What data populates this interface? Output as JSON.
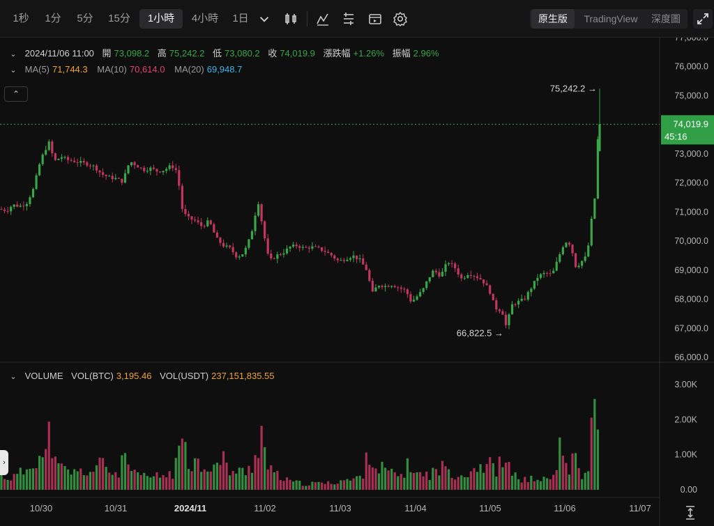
{
  "toolbar": {
    "timeframes": [
      "1秒",
      "1分",
      "5分",
      "15分",
      "1小時",
      "4小時",
      "1日"
    ],
    "active_timeframe": "1小時",
    "dropdown_icon": "chevron-down-icon",
    "icons": [
      "candlestick-type-icon",
      "indicators-icon",
      "chart-settings-lines-icon",
      "replay-icon",
      "gear-icon"
    ],
    "views": [
      "原生版",
      "TradingView",
      "深度圖"
    ],
    "active_view": "原生版",
    "expand_icon": "fullscreen-expand-icon"
  },
  "ohlc": {
    "datetime": "2024/11/06 11:00",
    "open_label": "開",
    "open": "73,098.2",
    "high_label": "高",
    "high": "75,242.2",
    "low_label": "低",
    "low": "73,080.2",
    "close_label": "收",
    "close": "74,019.9",
    "change_label": "漲跌幅",
    "change": "+1.26%",
    "amplitude_label": "振幅",
    "amplitude": "2.96%"
  },
  "ma": {
    "ma5_label": "MA(5)",
    "ma5": "71,744.3",
    "ma10_label": "MA(10)",
    "ma10": "70,614.0",
    "ma20_label": "MA(20)",
    "ma20": "69,948.7"
  },
  "volume": {
    "label": "VOLUME",
    "btc_label": "VOL(BTC)",
    "btc": "3,195.46",
    "usdt_label": "VOL(USDT)",
    "usdt": "237,151,835.55"
  },
  "colors": {
    "up": "#3aa648",
    "down": "#c4365f",
    "ma5": "#f0a23a",
    "ma10": "#e2456d",
    "ma20": "#3fb6e6",
    "price_tag": "#2f9e44"
  },
  "chart_data": {
    "type": "candlestick",
    "price_axis": {
      "ticks": [
        66000,
        67000,
        68000,
        69000,
        70000,
        71000,
        72000,
        73000,
        74000,
        75000,
        76000,
        77000
      ],
      "tick_labels": [
        "66,000.0",
        "67,000.0",
        "68,000.0",
        "69,000.0",
        "70,000.0",
        "71,000.0",
        "72,000.0",
        "73,000.0",
        "74,000.0",
        "75,000.0",
        "76,000.0",
        "77,000.0"
      ],
      "range": [
        66000,
        77200
      ]
    },
    "volume_axis": {
      "ticks": [
        0,
        1000,
        2000,
        3000
      ],
      "tick_labels": [
        "0.00",
        "1.00K",
        "2.00K",
        "3.00K"
      ],
      "range": [
        0,
        3400
      ]
    },
    "x_labels": [
      "10/30",
      "10/31",
      "2024/11",
      "11/02",
      "11/03",
      "11/04",
      "11/05",
      "11/06",
      "11/07"
    ],
    "x_label_bold": "2024/11",
    "current_price": "74,019.9",
    "countdown": "45:16",
    "high_marker": "75,242.2",
    "low_marker": "66,822.5",
    "series_points": [
      [
        0,
        71100
      ],
      [
        10,
        71050
      ],
      [
        18,
        71250
      ],
      [
        28,
        71200
      ],
      [
        38,
        71300
      ],
      [
        48,
        71800
      ],
      [
        56,
        72600
      ],
      [
        62,
        73000
      ],
      [
        70,
        73400
      ],
      [
        78,
        72750
      ],
      [
        88,
        72900
      ],
      [
        96,
        72800
      ],
      [
        106,
        72750
      ],
      [
        116,
        72700
      ],
      [
        126,
        72650
      ],
      [
        136,
        72550
      ],
      [
        146,
        72300
      ],
      [
        156,
        72200
      ],
      [
        166,
        72150
      ],
      [
        176,
        72050
      ],
      [
        186,
        72750
      ],
      [
        196,
        72600
      ],
      [
        206,
        72450
      ],
      [
        216,
        72500
      ],
      [
        226,
        72400
      ],
      [
        236,
        72450
      ],
      [
        246,
        72600
      ],
      [
        254,
        72400
      ],
      [
        262,
        71000
      ],
      [
        270,
        70800
      ],
      [
        280,
        70700
      ],
      [
        290,
        70500
      ],
      [
        300,
        70700
      ],
      [
        310,
        70100
      ],
      [
        320,
        69850
      ],
      [
        330,
        69750
      ],
      [
        340,
        69450
      ],
      [
        350,
        69600
      ],
      [
        360,
        70200
      ],
      [
        370,
        71400
      ],
      [
        378,
        70300
      ],
      [
        386,
        69300
      ],
      [
        396,
        69500
      ],
      [
        406,
        69600
      ],
      [
        416,
        69800
      ],
      [
        426,
        69850
      ],
      [
        436,
        69750
      ],
      [
        446,
        69800
      ],
      [
        456,
        69750
      ],
      [
        466,
        69650
      ],
      [
        476,
        69500
      ],
      [
        486,
        69300
      ],
      [
        496,
        69400
      ],
      [
        506,
        69500
      ],
      [
        516,
        69350
      ],
      [
        526,
        69000
      ],
      [
        534,
        68200
      ],
      [
        542,
        68500
      ],
      [
        552,
        68450
      ],
      [
        562,
        68500
      ],
      [
        572,
        68400
      ],
      [
        582,
        68300
      ],
      [
        590,
        67900
      ],
      [
        598,
        68100
      ],
      [
        606,
        68300
      ],
      [
        614,
        68700
      ],
      [
        622,
        69000
      ],
      [
        632,
        68800
      ],
      [
        642,
        69300
      ],
      [
        652,
        69100
      ],
      [
        662,
        68700
      ],
      [
        672,
        68900
      ],
      [
        682,
        68800
      ],
      [
        692,
        68650
      ],
      [
        702,
        68300
      ],
      [
        710,
        67700
      ],
      [
        720,
        67600
      ],
      [
        726,
        67050
      ],
      [
        734,
        67800
      ],
      [
        742,
        67900
      ],
      [
        752,
        68000
      ],
      [
        762,
        68400
      ],
      [
        772,
        68800
      ],
      [
        782,
        68900
      ],
      [
        792,
        68850
      ],
      [
        802,
        69500
      ],
      [
        810,
        70000
      ],
      [
        818,
        69900
      ],
      [
        826,
        69100
      ],
      [
        834,
        69300
      ],
      [
        842,
        69500
      ],
      [
        848,
        70700
      ],
      [
        852,
        71000
      ],
      [
        856,
        73200
      ],
      [
        860,
        74019.9
      ]
    ],
    "volume_points": [
      [
        0,
        420
      ],
      [
        18,
        380
      ],
      [
        36,
        600
      ],
      [
        48,
        980
      ],
      [
        56,
        1150
      ],
      [
        64,
        860
      ],
      [
        72,
        1950
      ],
      [
        80,
        720
      ],
      [
        90,
        640
      ],
      [
        100,
        580
      ],
      [
        110,
        520
      ],
      [
        120,
        600
      ],
      [
        130,
        560
      ],
      [
        140,
        700
      ],
      [
        150,
        910
      ],
      [
        160,
        480
      ],
      [
        170,
        560
      ],
      [
        180,
        1050
      ],
      [
        190,
        480
      ],
      [
        200,
        420
      ],
      [
        210,
        420
      ],
      [
        220,
        400
      ],
      [
        230,
        430
      ],
      [
        240,
        480
      ],
      [
        250,
        560
      ],
      [
        258,
        1200
      ],
      [
        264,
        2150
      ],
      [
        270,
        1000
      ],
      [
        280,
        900
      ],
      [
        290,
        760
      ],
      [
        300,
        800
      ],
      [
        310,
        720
      ],
      [
        320,
        950
      ],
      [
        330,
        600
      ],
      [
        340,
        560
      ],
      [
        350,
        560
      ],
      [
        360,
        700
      ],
      [
        368,
        1250
      ],
      [
        376,
        1850
      ],
      [
        384,
        700
      ],
      [
        392,
        500
      ],
      [
        402,
        420
      ],
      [
        412,
        280
      ],
      [
        422,
        240
      ],
      [
        432,
        200
      ],
      [
        442,
        180
      ],
      [
        452,
        200
      ],
      [
        462,
        220
      ],
      [
        472,
        200
      ],
      [
        482,
        260
      ],
      [
        492,
        320
      ],
      [
        502,
        300
      ],
      [
        512,
        350
      ],
      [
        522,
        560
      ],
      [
        531,
        1400
      ],
      [
        540,
        600
      ],
      [
        550,
        700
      ],
      [
        560,
        500
      ],
      [
        570,
        450
      ],
      [
        580,
        500
      ],
      [
        588,
        900
      ],
      [
        596,
        500
      ],
      [
        606,
        450
      ],
      [
        616,
        500
      ],
      [
        626,
        600
      ],
      [
        636,
        700
      ],
      [
        646,
        650
      ],
      [
        656,
        450
      ],
      [
        666,
        520
      ],
      [
        676,
        600
      ],
      [
        686,
        850
      ],
      [
        694,
        700
      ],
      [
        704,
        800
      ],
      [
        712,
        650
      ],
      [
        720,
        900
      ],
      [
        728,
        700
      ],
      [
        738,
        450
      ],
      [
        748,
        350
      ],
      [
        758,
        280
      ],
      [
        768,
        400
      ],
      [
        778,
        300
      ],
      [
        788,
        350
      ],
      [
        798,
        500
      ],
      [
        802,
        1650
      ],
      [
        808,
        1000
      ],
      [
        816,
        600
      ],
      [
        824,
        1000
      ],
      [
        834,
        400
      ],
      [
        842,
        450
      ],
      [
        848,
        1800
      ],
      [
        854,
        2550
      ],
      [
        860,
        3250
      ]
    ]
  }
}
